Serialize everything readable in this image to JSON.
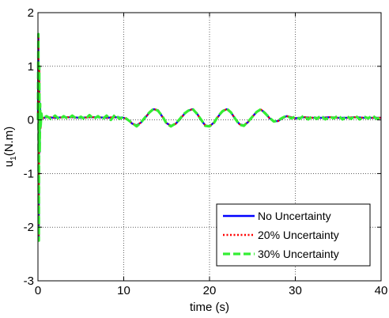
{
  "chart_data": {
    "type": "line",
    "title": "",
    "xlabel": "time (s)",
    "ylabel": {
      "base": "u",
      "sub": "1",
      "rest": "(N.m)"
    },
    "xlim": [
      0,
      40
    ],
    "ylim": [
      -3,
      2
    ],
    "xticks": [
      0,
      10,
      20,
      30,
      40
    ],
    "yticks": [
      -3,
      -2,
      -1,
      0,
      1,
      2
    ],
    "xtick_labels": [
      "0",
      "10",
      "20",
      "30",
      "40"
    ],
    "ytick_labels": [
      "-3",
      "-2",
      "-1",
      "0",
      "1",
      "2"
    ],
    "grid": true,
    "legend_position": "bottom-right",
    "series": [
      {
        "name": "No Uncertainty",
        "color": "#0000ff",
        "style": "solid",
        "x": [
          0,
          0.05,
          0.1,
          0.15,
          0.2,
          0.25,
          0.3,
          0.4,
          0.5,
          1,
          2,
          3,
          4,
          5,
          6,
          7,
          8,
          9,
          10,
          10.5,
          11,
          11.5,
          12,
          12.5,
          13,
          13.5,
          14,
          14.5,
          15,
          15.5,
          16,
          16.5,
          17,
          17.5,
          18,
          18.5,
          19,
          19.5,
          20,
          20.5,
          21,
          21.5,
          22,
          22.5,
          23,
          23.5,
          24,
          24.5,
          25,
          25.5,
          26,
          26.5,
          27,
          27.5,
          28,
          28.5,
          29,
          29.5,
          30,
          30.5,
          31,
          32,
          33,
          34,
          35,
          36,
          37,
          38,
          39,
          40
        ],
        "values": [
          0,
          1.6,
          -2.2,
          1.0,
          -0.6,
          0.3,
          -0.15,
          0.1,
          0.03,
          0.05,
          0.04,
          0.05,
          0.05,
          0.04,
          0.05,
          0.05,
          0.04,
          0.05,
          0.04,
          0.0,
          -0.07,
          -0.1,
          -0.05,
          0.04,
          0.14,
          0.2,
          0.18,
          0.06,
          -0.06,
          -0.11,
          -0.08,
          0.0,
          0.1,
          0.17,
          0.2,
          0.13,
          0.0,
          -0.1,
          -0.12,
          -0.05,
          0.06,
          0.16,
          0.2,
          0.14,
          0.02,
          -0.08,
          -0.1,
          -0.04,
          0.06,
          0.15,
          0.19,
          0.13,
          0.03,
          -0.03,
          -0.02,
          0.03,
          0.07,
          0.05,
          0.03,
          0.04,
          0.05,
          0.04,
          0.04,
          0.05,
          0.04,
          0.04,
          0.05,
          0.04,
          0.04,
          0.04
        ]
      },
      {
        "name": "20% Uncertainty",
        "color": "#ff0000",
        "style": "dotted",
        "x": [
          0,
          0.05,
          0.1,
          0.15,
          0.2,
          0.25,
          0.3,
          0.4,
          0.5,
          1,
          2,
          3,
          4,
          5,
          6,
          7,
          8,
          9,
          10,
          10.5,
          11,
          11.5,
          12,
          12.5,
          13,
          13.5,
          14,
          14.5,
          15,
          15.5,
          16,
          16.5,
          17,
          17.5,
          18,
          18.5,
          19,
          19.5,
          20,
          20.5,
          21,
          21.5,
          22,
          22.5,
          23,
          23.5,
          24,
          24.5,
          25,
          25.5,
          26,
          26.5,
          27,
          27.5,
          28,
          28.5,
          29,
          29.5,
          30,
          30.5,
          31,
          32,
          33,
          34,
          35,
          36,
          37,
          38,
          39,
          40
        ],
        "values": [
          0,
          1.6,
          -2.2,
          1.0,
          -0.6,
          0.3,
          -0.15,
          0.1,
          0.03,
          0.05,
          0.04,
          0.05,
          0.05,
          0.04,
          0.05,
          0.05,
          0.04,
          0.05,
          0.04,
          0.0,
          -0.07,
          -0.1,
          -0.05,
          0.04,
          0.14,
          0.2,
          0.18,
          0.06,
          -0.06,
          -0.11,
          -0.08,
          0.0,
          0.1,
          0.17,
          0.2,
          0.13,
          0.0,
          -0.1,
          -0.12,
          -0.05,
          0.06,
          0.16,
          0.2,
          0.14,
          0.02,
          -0.08,
          -0.1,
          -0.04,
          0.06,
          0.15,
          0.19,
          0.13,
          0.03,
          -0.03,
          -0.02,
          0.03,
          0.07,
          0.05,
          0.03,
          0.04,
          0.05,
          0.04,
          0.04,
          0.05,
          0.04,
          0.04,
          0.05,
          0.04,
          0.04,
          0.04
        ]
      },
      {
        "name": "30% Uncertainty",
        "color": "#33ee33",
        "style": "dashed",
        "x": [
          0,
          0.05,
          0.1,
          0.15,
          0.2,
          0.25,
          0.3,
          0.4,
          0.5,
          1,
          1.5,
          2,
          2.5,
          3,
          3.5,
          4,
          4.5,
          5,
          5.5,
          6,
          6.5,
          7,
          7.5,
          8,
          8.5,
          9,
          9.5,
          10,
          10.5,
          11,
          11.5,
          12,
          12.5,
          13,
          13.5,
          14,
          14.5,
          15,
          15.5,
          16,
          16.5,
          17,
          17.5,
          18,
          18.5,
          19,
          19.5,
          20,
          20.5,
          21,
          21.5,
          22,
          22.5,
          23,
          23.5,
          24,
          24.5,
          25,
          25.5,
          26,
          26.5,
          27,
          27.5,
          28,
          28.5,
          29,
          29.5,
          30,
          30.5,
          31,
          31.5,
          32,
          32.5,
          33,
          33.5,
          34,
          34.5,
          35,
          35.5,
          36,
          36.5,
          37,
          37.5,
          38,
          38.5,
          39,
          39.5,
          40
        ],
        "values": [
          0,
          1.6,
          -2.25,
          1.0,
          -0.6,
          0.3,
          -0.15,
          0.12,
          0.02,
          0.07,
          0.02,
          0.08,
          0.01,
          0.07,
          0.02,
          0.08,
          0.02,
          0.06,
          0.01,
          0.09,
          0.02,
          0.07,
          0.01,
          0.08,
          0.0,
          0.1,
          0.02,
          0.06,
          0.0,
          -0.06,
          -0.12,
          -0.05,
          0.05,
          0.14,
          0.21,
          0.17,
          0.07,
          -0.07,
          -0.12,
          -0.07,
          0.01,
          0.11,
          0.17,
          0.21,
          0.12,
          0.01,
          -0.11,
          -0.12,
          -0.06,
          0.07,
          0.16,
          0.21,
          0.14,
          0.02,
          -0.09,
          -0.11,
          -0.03,
          0.06,
          0.15,
          0.2,
          0.12,
          0.04,
          -0.03,
          -0.01,
          0.04,
          0.08,
          0.03,
          0.06,
          0.02,
          0.08,
          0.01,
          0.07,
          0.02,
          0.08,
          0.01,
          0.06,
          0.03,
          0.08,
          0.01,
          0.07,
          0.02,
          0.08,
          0.01,
          0.06,
          0.03,
          0.08,
          0.02,
          0.05
        ]
      }
    ]
  }
}
